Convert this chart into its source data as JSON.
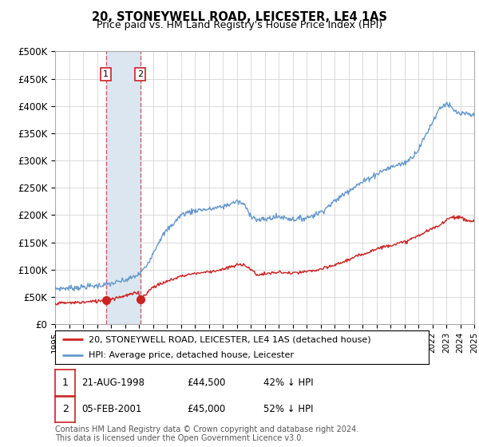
{
  "title": "20, STONEYWELL ROAD, LEICESTER, LE4 1AS",
  "subtitle": "Price paid vs. HM Land Registry's House Price Index (HPI)",
  "hpi_label": "HPI: Average price, detached house, Leicester",
  "property_label": "20, STONEYWELL ROAD, LEICESTER, LE4 1AS (detached house)",
  "sale1_date": "21-AUG-1998",
  "sale1_price": 44500,
  "sale1_hpi_pct": "42% ↓ HPI",
  "sale2_date": "05-FEB-2001",
  "sale2_price": 45000,
  "sale2_hpi_pct": "52% ↓ HPI",
  "xmin": 1995,
  "xmax": 2025,
  "ymin": 0,
  "ymax": 500000,
  "yticks": [
    0,
    50000,
    100000,
    150000,
    200000,
    250000,
    300000,
    350000,
    400000,
    450000,
    500000
  ],
  "ytick_labels": [
    "£0",
    "£50K",
    "£100K",
    "£150K",
    "£200K",
    "£250K",
    "£300K",
    "£350K",
    "£400K",
    "£450K",
    "£500K"
  ],
  "hpi_color": "#6699cc",
  "property_color": "#cc2222",
  "sale1_x": 1998.64,
  "sale2_x": 2001.09,
  "background_color": "#ffffff",
  "plot_bg_color": "#ffffff",
  "grid_color": "#cccccc",
  "shade_color": "#dce6f0",
  "footer": "Contains HM Land Registry data © Crown copyright and database right 2024.\nThis data is licensed under the Open Government Licence v3.0."
}
